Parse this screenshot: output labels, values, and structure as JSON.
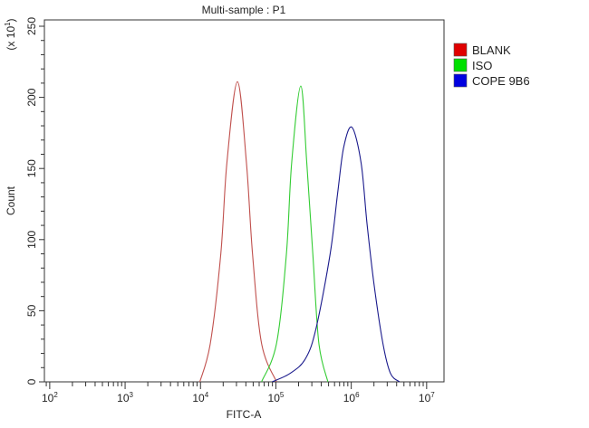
{
  "chart_data": {
    "type": "line",
    "title": "Multi-sample : P1",
    "xlabel": "FITC-A",
    "ylabel": "Count",
    "ymultiplier": {
      "base": "(x 10",
      "exp": "1",
      "close": ")"
    },
    "xscale": "log",
    "xlim": [
      85,
      17000000
    ],
    "ylim": [
      0,
      250
    ],
    "xticks": [
      {
        "base": "10",
        "exp": "2",
        "value": 100
      },
      {
        "base": "10",
        "exp": "3",
        "value": 1000
      },
      {
        "base": "10",
        "exp": "4",
        "value": 10000
      },
      {
        "base": "10",
        "exp": "5",
        "value": 100000
      },
      {
        "base": "10",
        "exp": "6",
        "value": 1000000
      },
      {
        "base": "10",
        "exp": "7",
        "value": 10000000
      }
    ],
    "yticks": [
      "0",
      "50",
      "100",
      "150",
      "200",
      "250"
    ],
    "yticks_values": [
      0,
      50,
      100,
      150,
      200,
      250
    ],
    "grid": false,
    "legend_placement": "right-top",
    "series": [
      {
        "name": "BLANK",
        "color": "#e00000",
        "line_color": "#c0504d",
        "points": [
          [
            9800,
            0
          ],
          [
            13500,
            27
          ],
          [
            18600,
            90
          ],
          [
            22400,
            154
          ],
          [
            30900,
            211
          ],
          [
            40700,
            154
          ],
          [
            49000,
            90
          ],
          [
            64600,
            27
          ],
          [
            102000,
            0
          ]
        ]
      },
      {
        "name": "ISO",
        "color": "#00e000",
        "line_color": "#33cc33",
        "points": [
          [
            64600,
            0
          ],
          [
            102000,
            27
          ],
          [
            138000,
            90
          ],
          [
            162000,
            154
          ],
          [
            214000,
            208
          ],
          [
            257000,
            154
          ],
          [
            309000,
            90
          ],
          [
            372000,
            27
          ],
          [
            490000,
            0
          ]
        ]
      },
      {
        "name": "COPE 9B6",
        "color": "#0000e0",
        "line_color": "#1a1a8c",
        "points": [
          [
            89000,
            0
          ],
          [
            155000,
            6
          ],
          [
            245000,
            16
          ],
          [
            339000,
            37
          ],
          [
            525000,
            90
          ],
          [
            661000,
            133
          ],
          [
            794000,
            165
          ],
          [
            1020000,
            179
          ],
          [
            1350000,
            154
          ],
          [
            1620000,
            111
          ],
          [
            2000000,
            69
          ],
          [
            2630000,
            27
          ],
          [
            3310000,
            6
          ],
          [
            4370000,
            0
          ]
        ]
      }
    ]
  }
}
